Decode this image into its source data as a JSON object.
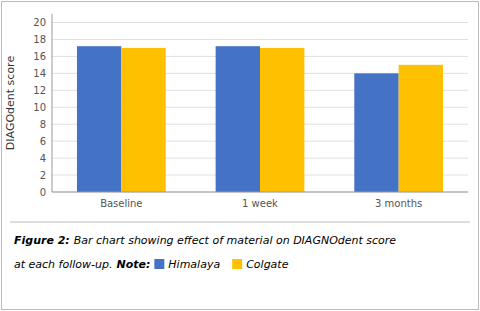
{
  "chart_data": {
    "type": "bar",
    "categories": [
      "Baseline",
      "1 week",
      "3 months"
    ],
    "series": [
      {
        "name": "Himalaya",
        "color": "#4472C4",
        "values": [
          17.2,
          17.2,
          14.0
        ]
      },
      {
        "name": "Colgate",
        "color": "#FFC000",
        "values": [
          17.0,
          17.0,
          15.0
        ]
      }
    ],
    "y_label": "DIAGOdent score",
    "ylim": [
      0,
      21
    ],
    "yticks": [
      0,
      2,
      4,
      6,
      8,
      10,
      12,
      14,
      16,
      18,
      20
    ],
    "grid": true,
    "legend": "bottom",
    "annotations": [
      "Figure 2:",
      "Bar chart showing effect of material on DIAGNOdent score",
      "at each follow-up.",
      "Note:"
    ]
  }
}
